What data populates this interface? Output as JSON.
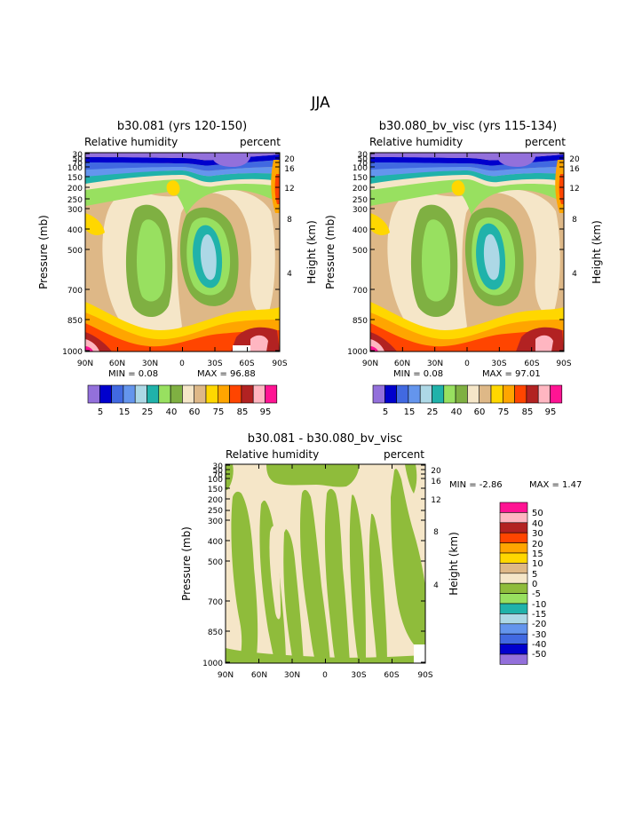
{
  "page_title": "JJA",
  "colors": {
    "rh": [
      "#9370DB",
      "#0000CD",
      "#4169E1",
      "#6495ED",
      "#ADD8E6",
      "#20B2AA",
      "#98E060",
      "#7FB042",
      "#F5E6C8",
      "#DEB887",
      "#FFD700",
      "#FFA500",
      "#FF4500",
      "#B22222",
      "#FFB6C1",
      "#FF1493"
    ],
    "diff": [
      "#9370DB",
      "#0000CD",
      "#4169E1",
      "#6495ED",
      "#ADD8E6",
      "#20B2AA",
      "#98E060",
      "#8FBC3B",
      "#F5E6C8",
      "#DEB887",
      "#FFD700",
      "#FFA500",
      "#FF4500",
      "#B22222",
      "#FFB6C1",
      "#FF1493"
    ]
  },
  "chart_data": [
    {
      "type": "heatmap",
      "title": "b30.081 (yrs 120-150)",
      "left_label": "Relative humidity",
      "right_label": "percent",
      "ylabel": "Pressure (mb)",
      "y2label": "Height (km)",
      "xticks": [
        "90N",
        "60N",
        "30N",
        "0",
        "30S",
        "60S",
        "90S"
      ],
      "yticks": [
        "30",
        "50",
        "70",
        "100",
        "150",
        "200",
        "250",
        "300",
        "400",
        "500",
        "700",
        "850",
        "1000"
      ],
      "y2ticks": [
        "20",
        "16",
        "12",
        "8",
        "4"
      ],
      "min_text": "MIN =    0.08",
      "max_text": "MAX =   96.88",
      "colorbar_labels": [
        "5",
        "15",
        "25",
        "40",
        "60",
        "75",
        "85",
        "95"
      ]
    },
    {
      "type": "heatmap",
      "title": "b30.080_bv_visc (yrs 115-134)",
      "left_label": "Relative humidity",
      "right_label": "percent",
      "ylabel": "Pressure (mb)",
      "y2label": "Height (km)",
      "xticks": [
        "90N",
        "60N",
        "30N",
        "0",
        "30S",
        "60S",
        "90S"
      ],
      "yticks": [
        "30",
        "50",
        "70",
        "100",
        "150",
        "200",
        "250",
        "300",
        "400",
        "500",
        "700",
        "850",
        "1000"
      ],
      "y2ticks": [
        "20",
        "16",
        "12",
        "8",
        "4"
      ],
      "min_text": "MIN =    0.08",
      "max_text": "MAX =   97.01",
      "colorbar_labels": [
        "5",
        "15",
        "25",
        "40",
        "60",
        "75",
        "85",
        "95"
      ]
    },
    {
      "type": "heatmap",
      "title": "b30.081 - b30.080_bv_visc",
      "left_label": "Relative humidity",
      "right_label": "percent",
      "ylabel": "Pressure (mb)",
      "y2label": "Height (km)",
      "xticks": [
        "90N",
        "60N",
        "30N",
        "0",
        "30S",
        "60S",
        "90S"
      ],
      "yticks": [
        "30",
        "50",
        "70",
        "100",
        "150",
        "200",
        "250",
        "300",
        "400",
        "500",
        "700",
        "850",
        "1000"
      ],
      "y2ticks": [
        "20",
        "16",
        "12",
        "8",
        "4"
      ],
      "min_text": "MIN =   -2.86",
      "max_text": "MAX =    1.47",
      "colorbar_labels": [
        "50",
        "40",
        "30",
        "20",
        "15",
        "10",
        "5",
        "0",
        "-5",
        "-10",
        "-15",
        "-20",
        "-30",
        "-40",
        "-50"
      ]
    }
  ]
}
